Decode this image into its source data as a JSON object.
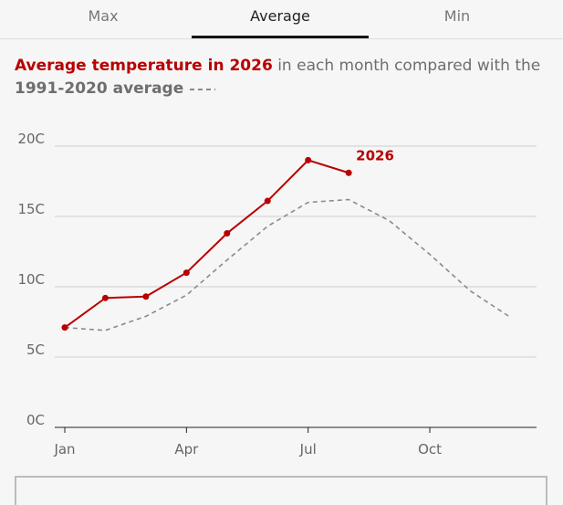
{
  "tabs": [
    "Max",
    "Average",
    "Min"
  ],
  "selected_tab": 1,
  "chart_data": {
    "type": "line",
    "title": {
      "highlight": "Average temperature in 2026",
      "rest": "in each month compared with the"
    },
    "categories": [
      "Jan",
      null,
      null,
      "Apr",
      null,
      null,
      "Jul",
      null,
      null,
      "Oct",
      null,
      null
    ],
    "series": [
      {
        "name": "2026",
        "color": "#b80000",
        "dashed": false,
        "markers": true,
        "values": [
          7.1,
          9.2,
          9.3,
          11.0,
          13.8,
          16.1,
          19.0,
          18.1,
          null,
          null,
          null,
          null
        ]
      },
      {
        "name": "1991-2020 average",
        "color": "#8a8a8a",
        "dashed": true,
        "markers": false,
        "values": [
          7.1,
          6.9,
          7.9,
          9.4,
          11.9,
          14.3,
          16.0,
          16.2,
          14.7,
          12.3,
          9.7,
          7.8
        ]
      }
    ],
    "ylim": [
      0,
      20
    ],
    "yticks": [
      {
        "value": 0,
        "label": "0C"
      },
      {
        "value": 5,
        "label": "5C"
      },
      {
        "value": 10,
        "label": "10C"
      },
      {
        "value": 15,
        "label": "15C"
      },
      {
        "value": 20,
        "label": "20C"
      }
    ],
    "grid": true
  }
}
